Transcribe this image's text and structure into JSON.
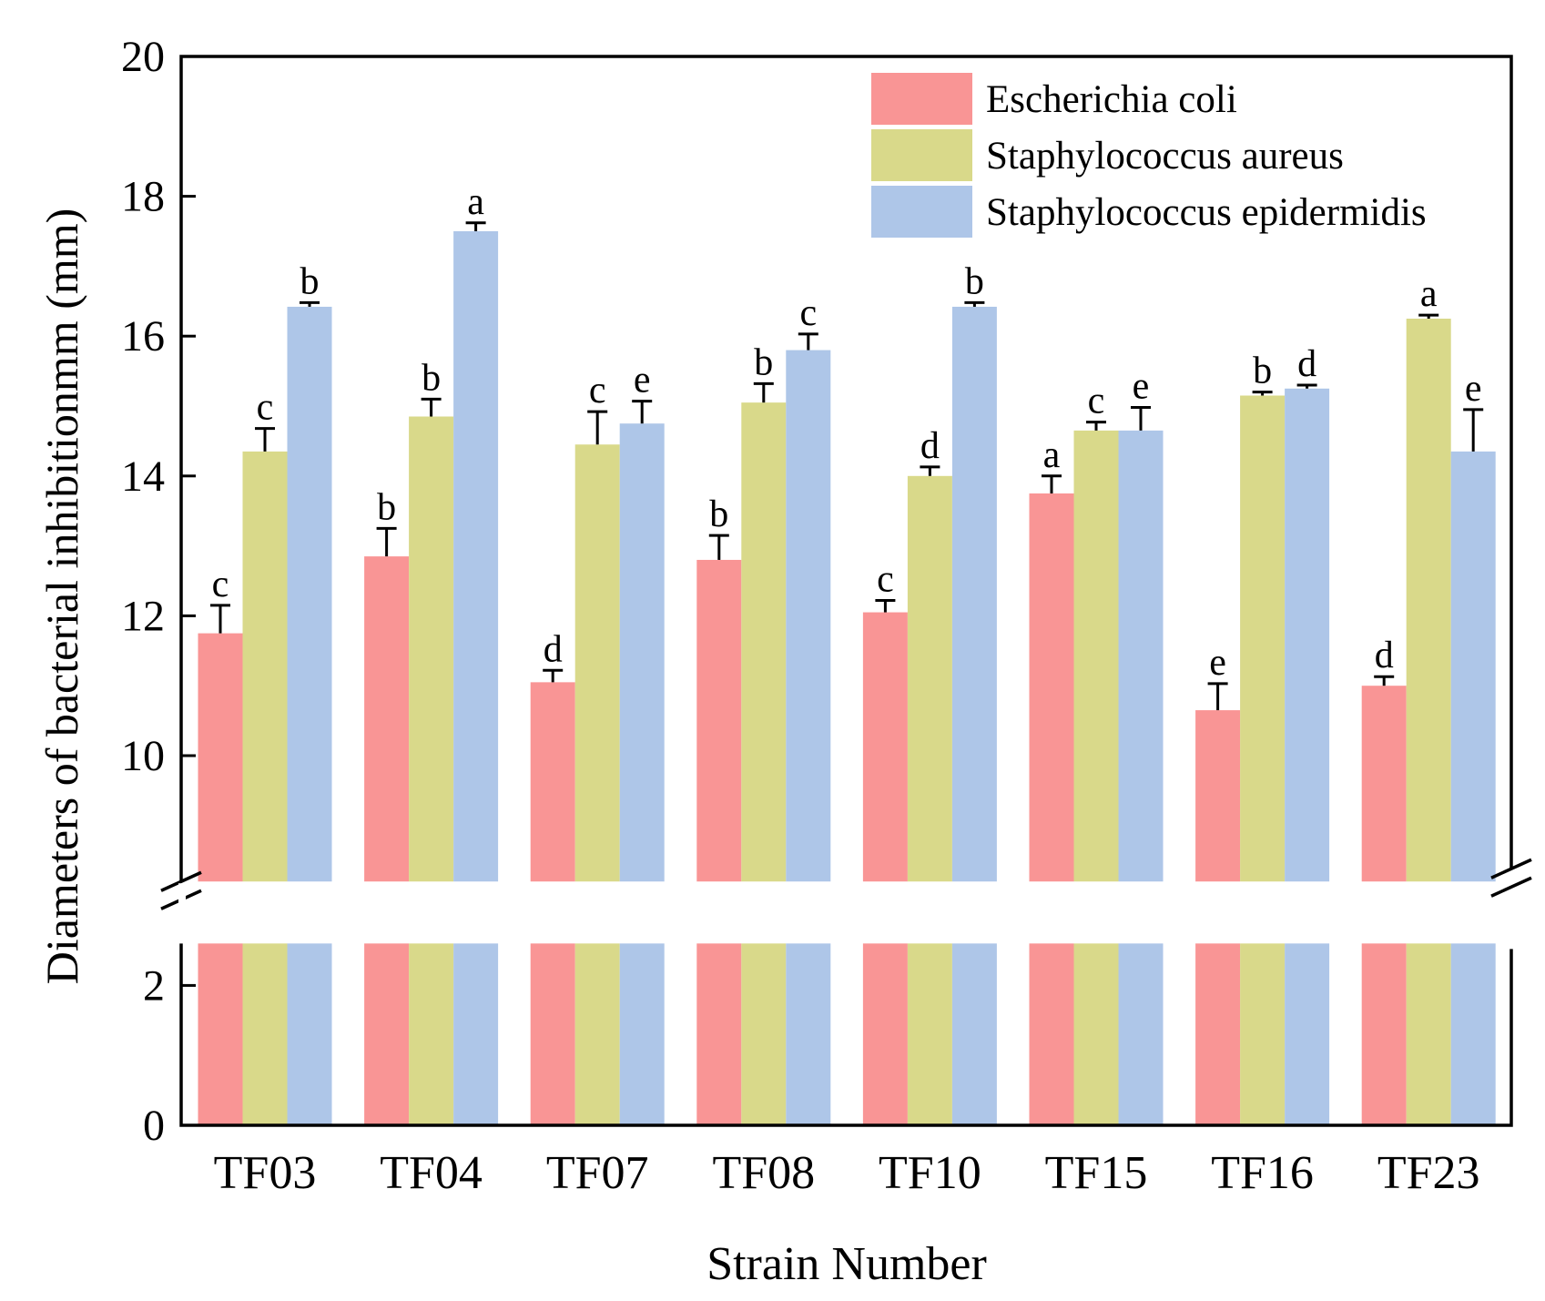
{
  "chart_data": {
    "type": "bar",
    "title": "",
    "xlabel": "Strain Number",
    "ylabel": "Diameters of bacterial inhibitionmm (mm)",
    "ylim": [
      0,
      20
    ],
    "axis_break": [
      2.6,
      8.2
    ],
    "yticks": [
      0,
      2,
      10,
      12,
      14,
      16,
      18,
      20
    ],
    "legend_position": "top-right",
    "grid": false,
    "categories": [
      "TF03",
      "TF04",
      "TF07",
      "TF08",
      "TF10",
      "TF15",
      "TF16",
      "TF23"
    ],
    "series": [
      {
        "name": "Escherichia coli",
        "color": "#f99595",
        "values": [
          11.75,
          12.85,
          11.05,
          12.8,
          12.05,
          13.75,
          10.65,
          11.0
        ],
        "errors": [
          0.4,
          0.4,
          0.17,
          0.35,
          0.17,
          0.25,
          0.38,
          0.13
        ],
        "letters": [
          "c",
          "b",
          "d",
          "b",
          "c",
          "a",
          "e",
          "d"
        ]
      },
      {
        "name": "Staphylococcus aureus",
        "color": "#d9d98a",
        "values": [
          14.35,
          14.85,
          14.45,
          15.05,
          14.0,
          14.65,
          15.15,
          16.25
        ],
        "errors": [
          0.33,
          0.25,
          0.47,
          0.27,
          0.13,
          0.12,
          0.05,
          0.05
        ],
        "letters": [
          "c",
          "b",
          "c",
          "b",
          "d",
          "c",
          "b",
          "a"
        ]
      },
      {
        "name": "Staphylococcus epidermidis",
        "color": "#aec6e8",
        "values": [
          16.42,
          17.5,
          14.75,
          15.8,
          16.42,
          14.65,
          15.25,
          14.35
        ],
        "errors": [
          0.06,
          0.12,
          0.32,
          0.23,
          0.06,
          0.33,
          0.05,
          0.6
        ],
        "letters": [
          "b",
          "a",
          "e",
          "c",
          "b",
          "e",
          "d",
          "e"
        ]
      }
    ]
  }
}
